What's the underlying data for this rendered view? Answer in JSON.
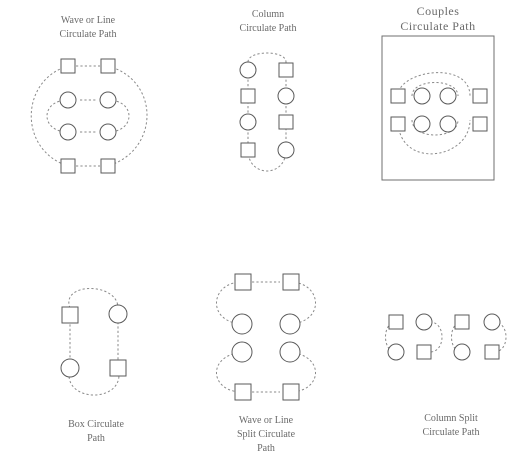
{
  "captions": {
    "wave_line": "Wave or Line\nCirculate Path",
    "column": "Column\nCirculate Path",
    "couples": "Couples\nCirculate Path",
    "box": "Box Circulate\nPath",
    "wave_split": "Wave or Line\nSplit Circulate\nPath",
    "column_split": "Column Split\nCirculate Path"
  }
}
